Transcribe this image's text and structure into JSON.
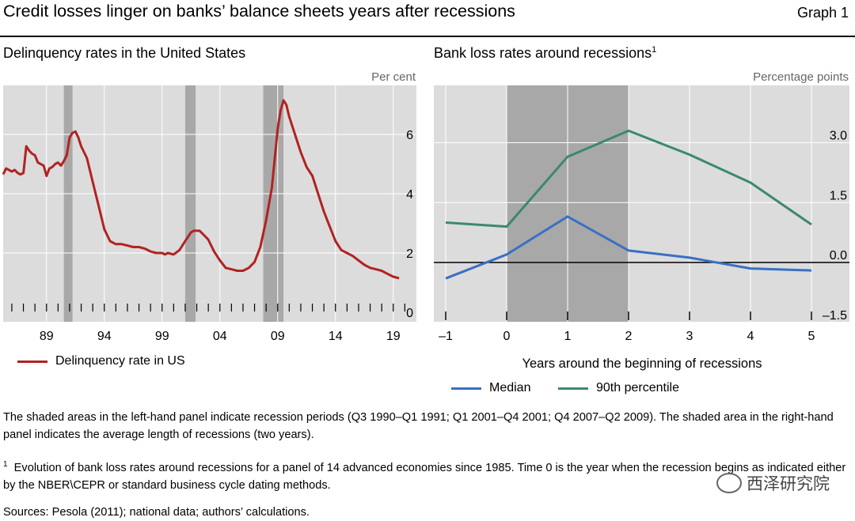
{
  "header": {
    "title": "Credit losses linger on banks’ balance sheets years after recessions",
    "graph_no": "Graph 1"
  },
  "left": {
    "title": "Delinquency rates in the United States",
    "unit": "Per cent",
    "legend": "Delinquency rate in US",
    "color": "#b22222"
  },
  "right": {
    "title": "Bank loss rates around recessions",
    "title_sup": "1",
    "unit": "Percentage points",
    "xlabel": "Years around the beginning of recessions",
    "legend_median": "Median",
    "legend_p90": "90th percentile",
    "color_median": "#3a6fc4",
    "color_p90": "#3a8a6a"
  },
  "chart_data": [
    {
      "type": "line",
      "title": "Delinquency rates in the United States",
      "ylabel": "Per cent",
      "xlim": [
        1985.25,
        2020
      ],
      "ylim": [
        0,
        8
      ],
      "x_ticks": [
        1989,
        1994,
        1999,
        2004,
        2009,
        2014,
        2019
      ],
      "x_tick_labels": [
        "89",
        "94",
        "99",
        "04",
        "09",
        "14",
        "19"
      ],
      "y_ticks": [
        0,
        2,
        4,
        6
      ],
      "y_tick_labels": [
        "0",
        "2",
        "4",
        "6"
      ],
      "recessions": [
        [
          1990.5,
          1991.25
        ],
        [
          2001.0,
          2001.9
        ],
        [
          2007.75,
          2009.5
        ]
      ],
      "grid": true,
      "legend_position": "bottom-left",
      "series": [
        {
          "name": "Delinquency rate in US",
          "x": [
            1985.25,
            1985.5,
            1985.75,
            1986.0,
            1986.25,
            1986.5,
            1986.75,
            1987.0,
            1987.25,
            1987.5,
            1987.75,
            1988.0,
            1988.25,
            1988.5,
            1988.75,
            1989.0,
            1989.25,
            1989.5,
            1989.75,
            1990.0,
            1990.25,
            1990.5,
            1990.75,
            1991.0,
            1991.25,
            1991.5,
            1991.75,
            1992.0,
            1992.5,
            1993.0,
            1993.5,
            1994.0,
            1994.5,
            1995.0,
            1995.5,
            1996.0,
            1996.5,
            1997.0,
            1997.5,
            1998.0,
            1998.5,
            1999.0,
            1999.25,
            1999.5,
            2000.0,
            2000.5,
            2001.0,
            2001.5,
            2001.75,
            2002.0,
            2002.25,
            2002.5,
            2003.0,
            2003.5,
            2004.0,
            2004.5,
            2005.0,
            2005.5,
            2006.0,
            2006.5,
            2007.0,
            2007.5,
            2008.0,
            2008.5,
            2008.75,
            2009.0,
            2009.25,
            2009.5,
            2009.75,
            2010.0,
            2010.5,
            2011.0,
            2011.5,
            2012.0,
            2012.5,
            2013.0,
            2013.5,
            2014.0,
            2014.5,
            2015.0,
            2015.5,
            2016.0,
            2016.5,
            2017.0,
            2017.5,
            2018.0,
            2018.5,
            2019.0,
            2019.5
          ],
          "y": [
            4.65,
            4.85,
            4.8,
            4.75,
            4.8,
            4.7,
            4.65,
            4.7,
            5.6,
            5.45,
            5.35,
            5.3,
            5.05,
            5.0,
            4.95,
            4.6,
            4.85,
            4.9,
            5.0,
            5.05,
            4.95,
            5.1,
            5.3,
            5.9,
            6.05,
            6.1,
            5.9,
            5.6,
            5.2,
            4.4,
            3.6,
            2.8,
            2.4,
            2.3,
            2.3,
            2.25,
            2.2,
            2.2,
            2.15,
            2.05,
            2.0,
            2.0,
            1.95,
            2.0,
            1.95,
            2.1,
            2.4,
            2.7,
            2.75,
            2.75,
            2.75,
            2.65,
            2.45,
            2.05,
            1.75,
            1.5,
            1.45,
            1.4,
            1.4,
            1.5,
            1.7,
            2.2,
            3.1,
            4.2,
            5.2,
            6.2,
            6.8,
            7.15,
            7.0,
            6.6,
            6.0,
            5.4,
            4.9,
            4.6,
            4.0,
            3.4,
            2.9,
            2.4,
            2.1,
            2.0,
            1.9,
            1.75,
            1.6,
            1.5,
            1.45,
            1.4,
            1.3,
            1.2,
            1.15
          ]
        }
      ]
    },
    {
      "type": "line",
      "title": "Bank loss rates around recessions",
      "xlabel": "Years around the beginning of recessions",
      "ylabel": "Percentage points",
      "xlim": [
        -1.2,
        5.65
      ],
      "ylim": [
        -1.5,
        4.5
      ],
      "x_ticks": [
        -1,
        0,
        1,
        2,
        3,
        4,
        5
      ],
      "x_tick_labels": [
        "–1",
        "0",
        "1",
        "2",
        "3",
        "4",
        "5"
      ],
      "y_ticks": [
        -1.5,
        0,
        1.5,
        3
      ],
      "y_tick_labels": [
        "–1.5",
        "0.0",
        "1.5",
        "3.0"
      ],
      "shaded": [
        0,
        2
      ],
      "grid": true,
      "legend_position": "bottom",
      "series": [
        {
          "name": "Median",
          "x": [
            -1,
            0,
            1,
            2,
            3,
            4,
            5
          ],
          "y": [
            -0.4,
            0.2,
            1.15,
            0.3,
            0.12,
            -0.15,
            -0.2
          ]
        },
        {
          "name": "90th percentile",
          "x": [
            -1,
            0,
            1,
            2,
            3,
            4,
            5
          ],
          "y": [
            1.0,
            0.9,
            2.65,
            3.3,
            2.7,
            2.0,
            0.95
          ]
        }
      ]
    }
  ],
  "notes": {
    "shading": "The shaded areas in the left-hand panel indicate recession periods (Q3 1990–Q1 1991; Q1 2001–Q4 2001; Q4 2007–Q2 2009). The shaded area in the right-hand panel indicates the average length of recessions (two years).",
    "footnote_mark": "1",
    "footnote": "Evolution of bank loss rates around recessions for a panel of 14 advanced economies since 1985. Time 0 is the year when the recession begins as indicated either by the NBER\\CEPR or standard business cycle dating methods.",
    "sources": "Sources: Pesola (2011); national data; authors’ calculations."
  },
  "watermark": {
    "text": "西泽研究院",
    "icon": "wechat-icon"
  }
}
